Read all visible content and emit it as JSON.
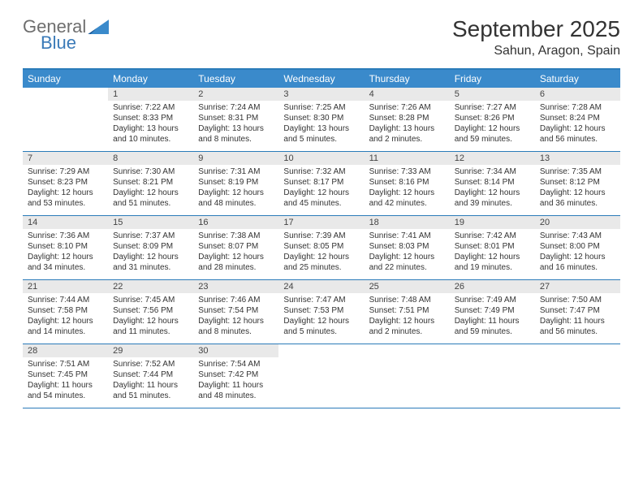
{
  "header": {
    "logo_general": "General",
    "logo_blue": "Blue",
    "month_title": "September 2025",
    "location": "Sahun, Aragon, Spain"
  },
  "styling": {
    "header_bg": "#3a8acb",
    "header_text": "#ffffff",
    "border_color": "#2b7bb9",
    "daynum_bg": "#e9e9e9",
    "body_text": "#333333",
    "logo_gray": "#6e6e6e",
    "logo_blue": "#3a7ab8",
    "month_fontsize": 28,
    "location_fontsize": 16,
    "dayheader_fontsize": 12,
    "daynum_fontsize": 11,
    "details_fontsize": 10
  },
  "day_names": [
    "Sunday",
    "Monday",
    "Tuesday",
    "Wednesday",
    "Thursday",
    "Friday",
    "Saturday"
  ],
  "weeks": [
    [
      {
        "empty": true
      },
      {
        "num": "1",
        "sunrise": "Sunrise: 7:22 AM",
        "sunset": "Sunset: 8:33 PM",
        "daylight": "Daylight: 13 hours and 10 minutes."
      },
      {
        "num": "2",
        "sunrise": "Sunrise: 7:24 AM",
        "sunset": "Sunset: 8:31 PM",
        "daylight": "Daylight: 13 hours and 8 minutes."
      },
      {
        "num": "3",
        "sunrise": "Sunrise: 7:25 AM",
        "sunset": "Sunset: 8:30 PM",
        "daylight": "Daylight: 13 hours and 5 minutes."
      },
      {
        "num": "4",
        "sunrise": "Sunrise: 7:26 AM",
        "sunset": "Sunset: 8:28 PM",
        "daylight": "Daylight: 13 hours and 2 minutes."
      },
      {
        "num": "5",
        "sunrise": "Sunrise: 7:27 AM",
        "sunset": "Sunset: 8:26 PM",
        "daylight": "Daylight: 12 hours and 59 minutes."
      },
      {
        "num": "6",
        "sunrise": "Sunrise: 7:28 AM",
        "sunset": "Sunset: 8:24 PM",
        "daylight": "Daylight: 12 hours and 56 minutes."
      }
    ],
    [
      {
        "num": "7",
        "sunrise": "Sunrise: 7:29 AM",
        "sunset": "Sunset: 8:23 PM",
        "daylight": "Daylight: 12 hours and 53 minutes."
      },
      {
        "num": "8",
        "sunrise": "Sunrise: 7:30 AM",
        "sunset": "Sunset: 8:21 PM",
        "daylight": "Daylight: 12 hours and 51 minutes."
      },
      {
        "num": "9",
        "sunrise": "Sunrise: 7:31 AM",
        "sunset": "Sunset: 8:19 PM",
        "daylight": "Daylight: 12 hours and 48 minutes."
      },
      {
        "num": "10",
        "sunrise": "Sunrise: 7:32 AM",
        "sunset": "Sunset: 8:17 PM",
        "daylight": "Daylight: 12 hours and 45 minutes."
      },
      {
        "num": "11",
        "sunrise": "Sunrise: 7:33 AM",
        "sunset": "Sunset: 8:16 PM",
        "daylight": "Daylight: 12 hours and 42 minutes."
      },
      {
        "num": "12",
        "sunrise": "Sunrise: 7:34 AM",
        "sunset": "Sunset: 8:14 PM",
        "daylight": "Daylight: 12 hours and 39 minutes."
      },
      {
        "num": "13",
        "sunrise": "Sunrise: 7:35 AM",
        "sunset": "Sunset: 8:12 PM",
        "daylight": "Daylight: 12 hours and 36 minutes."
      }
    ],
    [
      {
        "num": "14",
        "sunrise": "Sunrise: 7:36 AM",
        "sunset": "Sunset: 8:10 PM",
        "daylight": "Daylight: 12 hours and 34 minutes."
      },
      {
        "num": "15",
        "sunrise": "Sunrise: 7:37 AM",
        "sunset": "Sunset: 8:09 PM",
        "daylight": "Daylight: 12 hours and 31 minutes."
      },
      {
        "num": "16",
        "sunrise": "Sunrise: 7:38 AM",
        "sunset": "Sunset: 8:07 PM",
        "daylight": "Daylight: 12 hours and 28 minutes."
      },
      {
        "num": "17",
        "sunrise": "Sunrise: 7:39 AM",
        "sunset": "Sunset: 8:05 PM",
        "daylight": "Daylight: 12 hours and 25 minutes."
      },
      {
        "num": "18",
        "sunrise": "Sunrise: 7:41 AM",
        "sunset": "Sunset: 8:03 PM",
        "daylight": "Daylight: 12 hours and 22 minutes."
      },
      {
        "num": "19",
        "sunrise": "Sunrise: 7:42 AM",
        "sunset": "Sunset: 8:01 PM",
        "daylight": "Daylight: 12 hours and 19 minutes."
      },
      {
        "num": "20",
        "sunrise": "Sunrise: 7:43 AM",
        "sunset": "Sunset: 8:00 PM",
        "daylight": "Daylight: 12 hours and 16 minutes."
      }
    ],
    [
      {
        "num": "21",
        "sunrise": "Sunrise: 7:44 AM",
        "sunset": "Sunset: 7:58 PM",
        "daylight": "Daylight: 12 hours and 14 minutes."
      },
      {
        "num": "22",
        "sunrise": "Sunrise: 7:45 AM",
        "sunset": "Sunset: 7:56 PM",
        "daylight": "Daylight: 12 hours and 11 minutes."
      },
      {
        "num": "23",
        "sunrise": "Sunrise: 7:46 AM",
        "sunset": "Sunset: 7:54 PM",
        "daylight": "Daylight: 12 hours and 8 minutes."
      },
      {
        "num": "24",
        "sunrise": "Sunrise: 7:47 AM",
        "sunset": "Sunset: 7:53 PM",
        "daylight": "Daylight: 12 hours and 5 minutes."
      },
      {
        "num": "25",
        "sunrise": "Sunrise: 7:48 AM",
        "sunset": "Sunset: 7:51 PM",
        "daylight": "Daylight: 12 hours and 2 minutes."
      },
      {
        "num": "26",
        "sunrise": "Sunrise: 7:49 AM",
        "sunset": "Sunset: 7:49 PM",
        "daylight": "Daylight: 11 hours and 59 minutes."
      },
      {
        "num": "27",
        "sunrise": "Sunrise: 7:50 AM",
        "sunset": "Sunset: 7:47 PM",
        "daylight": "Daylight: 11 hours and 56 minutes."
      }
    ],
    [
      {
        "num": "28",
        "sunrise": "Sunrise: 7:51 AM",
        "sunset": "Sunset: 7:45 PM",
        "daylight": "Daylight: 11 hours and 54 minutes."
      },
      {
        "num": "29",
        "sunrise": "Sunrise: 7:52 AM",
        "sunset": "Sunset: 7:44 PM",
        "daylight": "Daylight: 11 hours and 51 minutes."
      },
      {
        "num": "30",
        "sunrise": "Sunrise: 7:54 AM",
        "sunset": "Sunset: 7:42 PM",
        "daylight": "Daylight: 11 hours and 48 minutes."
      },
      {
        "empty": true
      },
      {
        "empty": true
      },
      {
        "empty": true
      },
      {
        "empty": true
      }
    ]
  ]
}
